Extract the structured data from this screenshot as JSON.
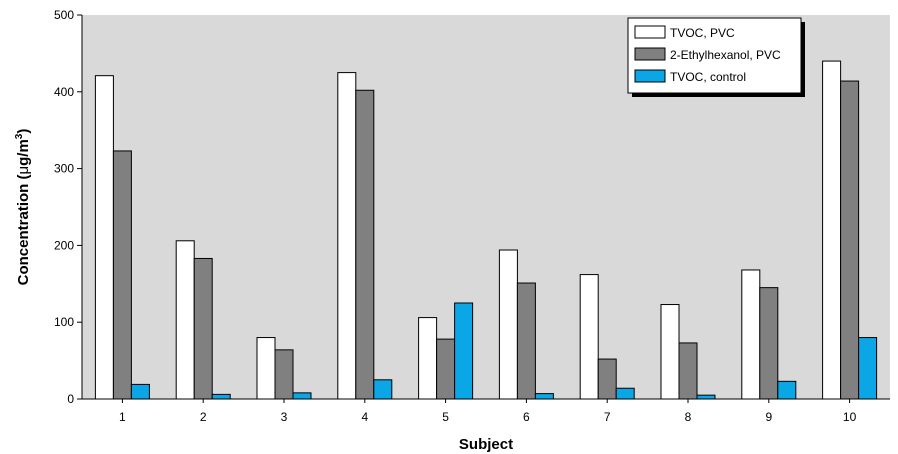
{
  "chart_data": {
    "type": "bar",
    "title": "",
    "xlabel": "Subject",
    "ylabel_main": "Concentration (",
    "ylabel_unit_mu": "μ",
    "ylabel_unit_rest": "g/m",
    "ylabel_sup": "3",
    "ylabel_close": ")",
    "categories": [
      "1",
      "2",
      "3",
      "4",
      "5",
      "6",
      "7",
      "8",
      "9",
      "10"
    ],
    "ylim": [
      0,
      500
    ],
    "yticks": [
      "0",
      "100",
      "200",
      "300",
      "400",
      "500"
    ],
    "grid": false,
    "legend_position": "top-right",
    "series": [
      {
        "name": "TVOC, PVC",
        "color": "#ffffff",
        "values": [
          421,
          206,
          80,
          425,
          106,
          194,
          162,
          123,
          168,
          440
        ]
      },
      {
        "name": "2-Ethylhexanol, PVC",
        "color": "#808080",
        "values": [
          323,
          183,
          64,
          402,
          78,
          151,
          52,
          73,
          145,
          414
        ]
      },
      {
        "name": "TVOC, control",
        "color": "#0aa6e6",
        "values": [
          19,
          6,
          8,
          25,
          125,
          7,
          14,
          5,
          23,
          80
        ]
      }
    ],
    "plot_background": "#d9d9d9"
  }
}
